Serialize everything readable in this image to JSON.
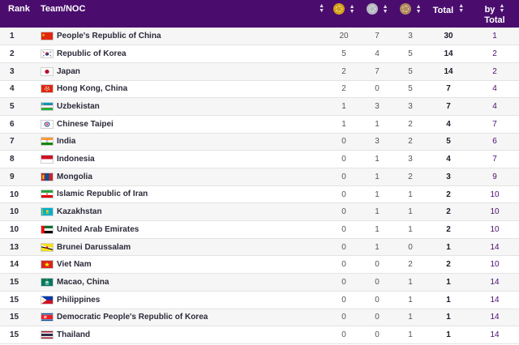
{
  "header": {
    "rank": "Rank",
    "team": "Team/NOC",
    "total": "Total",
    "by_total_line1": "by",
    "by_total_line2": "Total",
    "colors": {
      "bg": "#4a0d6e",
      "gold": "#d4a017",
      "silver": "#b7b7c2",
      "bronze": "#b08a5c"
    }
  },
  "rows": [
    {
      "rank": "1",
      "team": "People's Republic of China",
      "flag": "china-flag",
      "gold": "20",
      "silver": "7",
      "bronze": "3",
      "total": "30",
      "by_total": "1"
    },
    {
      "rank": "2",
      "team": "Republic of Korea",
      "flag": "korea-flag",
      "gold": "5",
      "silver": "4",
      "bronze": "5",
      "total": "14",
      "by_total": "2"
    },
    {
      "rank": "3",
      "team": "Japan",
      "flag": "japan-flag",
      "gold": "2",
      "silver": "7",
      "bronze": "5",
      "total": "14",
      "by_total": "2"
    },
    {
      "rank": "4",
      "team": "Hong Kong, China",
      "flag": "hong-kong-flag",
      "gold": "2",
      "silver": "0",
      "bronze": "5",
      "total": "7",
      "by_total": "4"
    },
    {
      "rank": "5",
      "team": "Uzbekistan",
      "flag": "uzbekistan-flag",
      "gold": "1",
      "silver": "3",
      "bronze": "3",
      "total": "7",
      "by_total": "4"
    },
    {
      "rank": "6",
      "team": "Chinese Taipei",
      "flag": "chinese-taipei-flag",
      "gold": "1",
      "silver": "1",
      "bronze": "2",
      "total": "4",
      "by_total": "7"
    },
    {
      "rank": "7",
      "team": "India",
      "flag": "india-flag",
      "gold": "0",
      "silver": "3",
      "bronze": "2",
      "total": "5",
      "by_total": "6"
    },
    {
      "rank": "8",
      "team": "Indonesia",
      "flag": "indonesia-flag",
      "gold": "0",
      "silver": "1",
      "bronze": "3",
      "total": "4",
      "by_total": "7"
    },
    {
      "rank": "9",
      "team": "Mongolia",
      "flag": "mongolia-flag",
      "gold": "0",
      "silver": "1",
      "bronze": "2",
      "total": "3",
      "by_total": "9"
    },
    {
      "rank": "10",
      "team": "Islamic Republic of Iran",
      "flag": "iran-flag",
      "gold": "0",
      "silver": "1",
      "bronze": "1",
      "total": "2",
      "by_total": "10"
    },
    {
      "rank": "10",
      "team": "Kazakhstan",
      "flag": "kazakhstan-flag",
      "gold": "0",
      "silver": "1",
      "bronze": "1",
      "total": "2",
      "by_total": "10"
    },
    {
      "rank": "10",
      "team": "United Arab Emirates",
      "flag": "uae-flag",
      "gold": "0",
      "silver": "1",
      "bronze": "1",
      "total": "2",
      "by_total": "10"
    },
    {
      "rank": "13",
      "team": "Brunei Darussalam",
      "flag": "brunei-flag",
      "gold": "0",
      "silver": "1",
      "bronze": "0",
      "total": "1",
      "by_total": "14"
    },
    {
      "rank": "14",
      "team": "Viet Nam",
      "flag": "vietnam-flag",
      "gold": "0",
      "silver": "0",
      "bronze": "2",
      "total": "2",
      "by_total": "10"
    },
    {
      "rank": "15",
      "team": "Macao, China",
      "flag": "macao-flag",
      "gold": "0",
      "silver": "0",
      "bronze": "1",
      "total": "1",
      "by_total": "14"
    },
    {
      "rank": "15",
      "team": "Philippines",
      "flag": "philippines-flag",
      "gold": "0",
      "silver": "0",
      "bronze": "1",
      "total": "1",
      "by_total": "14"
    },
    {
      "rank": "15",
      "team": "Democratic People's Republic of Korea",
      "flag": "dpr-korea-flag",
      "gold": "0",
      "silver": "0",
      "bronze": "1",
      "total": "1",
      "by_total": "14"
    },
    {
      "rank": "15",
      "team": "Thailand",
      "flag": "thailand-flag",
      "gold": "0",
      "silver": "0",
      "bronze": "1",
      "total": "1",
      "by_total": "14"
    }
  ]
}
